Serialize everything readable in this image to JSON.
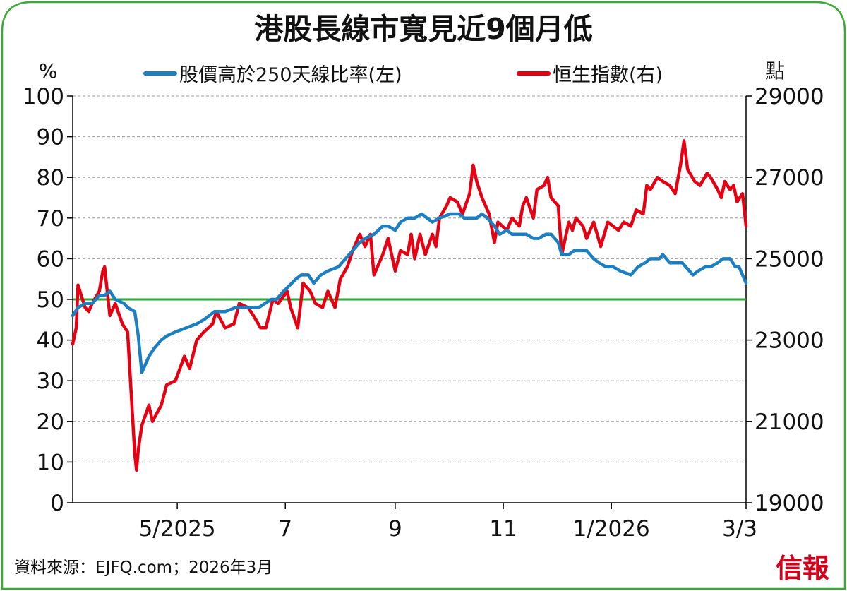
{
  "colors": {
    "frame": "#3aaa35",
    "breadth_line": "#1b7fc1",
    "index_line": "#e60012",
    "reference_line": "#2ea83a",
    "grid": "#999999",
    "brand": "#d7001a"
  },
  "chart_data": {
    "type": "line",
    "title": "港股長線市寬見近9個月低",
    "left_axis_unit": "%",
    "right_axis_unit": "點",
    "left_ylim": [
      0,
      100
    ],
    "right_ylim": [
      19000,
      29000
    ],
    "left_ticks": [
      "100",
      "90",
      "80",
      "70",
      "60",
      "50",
      "40",
      "30",
      "20",
      "10",
      "0"
    ],
    "right_ticks": [
      "29000",
      "27000",
      "25000",
      "23000",
      "21000",
      "19000"
    ],
    "x_ticks": [
      "5/2025",
      "7",
      "9",
      "11",
      "1/2026",
      "3/3"
    ],
    "grid": "horizontal dashed",
    "reference_line": 50,
    "legend_position": "top",
    "series": [
      {
        "name": "股價高於250天線比率(左)",
        "axis": "left",
        "points": [
          [
            "2025-03-03",
            46
          ],
          [
            "2025-03-06",
            48
          ],
          [
            "2025-03-10",
            49
          ],
          [
            "2025-03-14",
            49
          ],
          [
            "2025-03-18",
            51
          ],
          [
            "2025-03-21",
            51
          ],
          [
            "2025-03-24",
            52
          ],
          [
            "2025-03-27",
            50
          ],
          [
            "2025-04-01",
            49
          ],
          [
            "2025-04-03",
            48
          ],
          [
            "2025-04-07",
            47
          ],
          [
            "2025-04-09",
            41
          ],
          [
            "2025-04-11",
            32
          ],
          [
            "2025-04-15",
            36
          ],
          [
            "2025-04-18",
            38
          ],
          [
            "2025-04-22",
            40
          ],
          [
            "2025-04-25",
            41
          ],
          [
            "2025-04-30",
            42
          ],
          [
            "2025-05-06",
            43
          ],
          [
            "2025-05-12",
            44
          ],
          [
            "2025-05-16",
            45
          ],
          [
            "2025-05-22",
            47
          ],
          [
            "2025-05-28",
            47
          ],
          [
            "2025-06-03",
            48
          ],
          [
            "2025-06-10",
            48
          ],
          [
            "2025-06-16",
            48
          ],
          [
            "2025-06-23",
            50
          ],
          [
            "2025-06-26",
            50
          ],
          [
            "2025-06-30",
            52
          ],
          [
            "2025-07-07",
            55
          ],
          [
            "2025-07-10",
            56
          ],
          [
            "2025-07-14",
            56
          ],
          [
            "2025-07-17",
            54
          ],
          [
            "2025-07-21",
            56
          ],
          [
            "2025-07-25",
            57
          ],
          [
            "2025-07-31",
            58
          ],
          [
            "2025-08-04",
            60
          ],
          [
            "2025-08-08",
            62
          ],
          [
            "2025-08-12",
            64
          ],
          [
            "2025-08-15",
            65
          ],
          [
            "2025-08-20",
            66
          ],
          [
            "2025-08-25",
            68
          ],
          [
            "2025-08-28",
            68
          ],
          [
            "2025-09-01",
            67
          ],
          [
            "2025-09-04",
            69
          ],
          [
            "2025-09-08",
            70
          ],
          [
            "2025-09-12",
            70
          ],
          [
            "2025-09-16",
            71
          ],
          [
            "2025-09-19",
            70
          ],
          [
            "2025-09-22",
            69
          ],
          [
            "2025-09-26",
            70
          ],
          [
            "2025-10-02",
            71
          ],
          [
            "2025-10-07",
            71
          ],
          [
            "2025-10-10",
            70
          ],
          [
            "2025-10-14",
            70
          ],
          [
            "2025-10-17",
            70
          ],
          [
            "2025-10-20",
            71
          ],
          [
            "2025-10-23",
            70
          ],
          [
            "2025-10-27",
            68
          ],
          [
            "2025-10-30",
            66
          ],
          [
            "2025-11-03",
            67
          ],
          [
            "2025-11-06",
            66
          ],
          [
            "2025-11-10",
            66
          ],
          [
            "2025-11-14",
            66
          ],
          [
            "2025-11-18",
            65
          ],
          [
            "2025-11-21",
            65
          ],
          [
            "2025-11-25",
            66
          ],
          [
            "2025-11-28",
            66
          ],
          [
            "2025-12-02",
            64
          ],
          [
            "2025-12-04",
            61
          ],
          [
            "2025-12-08",
            61
          ],
          [
            "2025-12-11",
            62
          ],
          [
            "2025-12-15",
            62
          ],
          [
            "2025-12-18",
            62
          ],
          [
            "2025-12-22",
            60
          ],
          [
            "2025-12-25",
            59
          ],
          [
            "2025-12-29",
            58
          ],
          [
            "2026-01-02",
            58
          ],
          [
            "2026-01-06",
            57
          ],
          [
            "2026-01-12",
            56
          ],
          [
            "2026-01-16",
            58
          ],
          [
            "2026-01-20",
            59
          ],
          [
            "2026-01-23",
            60
          ],
          [
            "2026-01-28",
            60
          ],
          [
            "2026-01-30",
            61
          ],
          [
            "2026-02-03",
            59
          ],
          [
            "2026-02-06",
            59
          ],
          [
            "2026-02-10",
            59
          ],
          [
            "2026-02-12",
            58
          ],
          [
            "2026-02-16",
            56
          ],
          [
            "2026-02-19",
            57
          ],
          [
            "2026-02-23",
            58
          ],
          [
            "2026-02-26",
            58
          ],
          [
            "2026-03-02",
            59
          ],
          [
            "2026-03-05",
            60
          ],
          [
            "2026-03-09",
            60
          ],
          [
            "2026-03-12",
            58
          ],
          [
            "2026-03-14",
            58
          ],
          [
            "2026-03-16",
            56
          ],
          [
            "2026-03-18",
            54
          ]
        ]
      },
      {
        "name": "恒生指數(右)",
        "axis": "right",
        "points": [
          [
            "2025-03-03",
            22900
          ],
          [
            "2025-03-05",
            23300
          ],
          [
            "2025-03-06",
            24350
          ],
          [
            "2025-03-10",
            23800
          ],
          [
            "2025-03-12",
            23700
          ],
          [
            "2025-03-14",
            23900
          ],
          [
            "2025-03-18",
            24200
          ],
          [
            "2025-03-20",
            24700
          ],
          [
            "2025-03-21",
            24800
          ],
          [
            "2025-03-24",
            23600
          ],
          [
            "2025-03-27",
            23900
          ],
          [
            "2025-03-31",
            23400
          ],
          [
            "2025-04-03",
            23200
          ],
          [
            "2025-04-07",
            20200
          ],
          [
            "2025-04-08",
            19800
          ],
          [
            "2025-04-09",
            20300
          ],
          [
            "2025-04-11",
            20900
          ],
          [
            "2025-04-15",
            21400
          ],
          [
            "2025-04-17",
            21000
          ],
          [
            "2025-04-22",
            21400
          ],
          [
            "2025-04-25",
            21900
          ],
          [
            "2025-04-30",
            22000
          ],
          [
            "2025-05-05",
            22600
          ],
          [
            "2025-05-08",
            22300
          ],
          [
            "2025-05-12",
            23000
          ],
          [
            "2025-05-16",
            23200
          ],
          [
            "2025-05-21",
            23400
          ],
          [
            "2025-05-23",
            23700
          ],
          [
            "2025-05-28",
            23300
          ],
          [
            "2025-06-02",
            23400
          ],
          [
            "2025-06-05",
            23900
          ],
          [
            "2025-06-10",
            23800
          ],
          [
            "2025-06-13",
            23600
          ],
          [
            "2025-06-17",
            23300
          ],
          [
            "2025-06-20",
            23300
          ],
          [
            "2025-06-24",
            24000
          ],
          [
            "2025-06-27",
            23900
          ],
          [
            "2025-07-02",
            24200
          ],
          [
            "2025-07-04",
            23800
          ],
          [
            "2025-07-08",
            23300
          ],
          [
            "2025-07-11",
            24400
          ],
          [
            "2025-07-15",
            24200
          ],
          [
            "2025-07-18",
            23900
          ],
          [
            "2025-07-22",
            23800
          ],
          [
            "2025-07-25",
            24200
          ],
          [
            "2025-07-29",
            23800
          ],
          [
            "2025-08-01",
            24500
          ],
          [
            "2025-08-05",
            24800
          ],
          [
            "2025-08-08",
            25200
          ],
          [
            "2025-08-12",
            25600
          ],
          [
            "2025-08-15",
            25300
          ],
          [
            "2025-08-18",
            25600
          ],
          [
            "2025-08-20",
            24600
          ],
          [
            "2025-08-25",
            25100
          ],
          [
            "2025-08-28",
            25500
          ],
          [
            "2025-09-01",
            24700
          ],
          [
            "2025-09-04",
            25200
          ],
          [
            "2025-09-08",
            25100
          ],
          [
            "2025-09-10",
            25600
          ],
          [
            "2025-09-12",
            25000
          ],
          [
            "2025-09-15",
            25600
          ],
          [
            "2025-09-18",
            25100
          ],
          [
            "2025-09-22",
            25600
          ],
          [
            "2025-09-24",
            25300
          ],
          [
            "2025-09-26",
            26000
          ],
          [
            "2025-09-30",
            26300
          ],
          [
            "2025-10-02",
            26500
          ],
          [
            "2025-10-06",
            26400
          ],
          [
            "2025-10-09",
            26100
          ],
          [
            "2025-10-13",
            26600
          ],
          [
            "2025-10-15",
            27300
          ],
          [
            "2025-10-17",
            26900
          ],
          [
            "2025-10-20",
            26500
          ],
          [
            "2025-10-24",
            26100
          ],
          [
            "2025-10-27",
            25400
          ],
          [
            "2025-10-29",
            25900
          ],
          [
            "2025-11-03",
            25700
          ],
          [
            "2025-11-06",
            26000
          ],
          [
            "2025-11-10",
            25800
          ],
          [
            "2025-11-12",
            26300
          ],
          [
            "2025-11-14",
            26500
          ],
          [
            "2025-11-18",
            26000
          ],
          [
            "2025-11-20",
            26700
          ],
          [
            "2025-11-24",
            26800
          ],
          [
            "2025-11-26",
            27000
          ],
          [
            "2025-11-28",
            26500
          ],
          [
            "2025-12-02",
            26300
          ],
          [
            "2025-12-04",
            25100
          ],
          [
            "2025-12-08",
            25900
          ],
          [
            "2025-12-10",
            25700
          ],
          [
            "2025-12-12",
            26000
          ],
          [
            "2025-12-16",
            25800
          ],
          [
            "2025-12-18",
            25500
          ],
          [
            "2025-12-22",
            25900
          ],
          [
            "2025-12-26",
            25300
          ],
          [
            "2025-12-30",
            25900
          ],
          [
            "2026-01-05",
            25700
          ],
          [
            "2026-01-08",
            25900
          ],
          [
            "2026-01-12",
            25800
          ],
          [
            "2026-01-15",
            26200
          ],
          [
            "2026-01-19",
            26100
          ],
          [
            "2026-01-21",
            26800
          ],
          [
            "2026-01-23",
            26700
          ],
          [
            "2026-01-27",
            27000
          ],
          [
            "2026-01-30",
            26900
          ],
          [
            "2026-02-03",
            26800
          ],
          [
            "2026-02-06",
            26600
          ],
          [
            "2026-02-09",
            27300
          ],
          [
            "2026-02-11",
            27900
          ],
          [
            "2026-02-13",
            27200
          ],
          [
            "2026-02-17",
            26900
          ],
          [
            "2026-02-20",
            26800
          ],
          [
            "2026-02-24",
            27100
          ],
          [
            "2026-02-26",
            27000
          ],
          [
            "2026-03-02",
            26700
          ],
          [
            "2026-03-04",
            26500
          ],
          [
            "2026-03-06",
            26900
          ],
          [
            "2026-03-09",
            26700
          ],
          [
            "2026-03-11",
            26800
          ],
          [
            "2026-03-13",
            26400
          ],
          [
            "2026-03-16",
            26600
          ],
          [
            "2026-03-18",
            25800
          ]
        ]
      }
    ]
  },
  "footer": {
    "source": "資料來源：EJFQ.com；2026年3月",
    "brand": "信報"
  }
}
